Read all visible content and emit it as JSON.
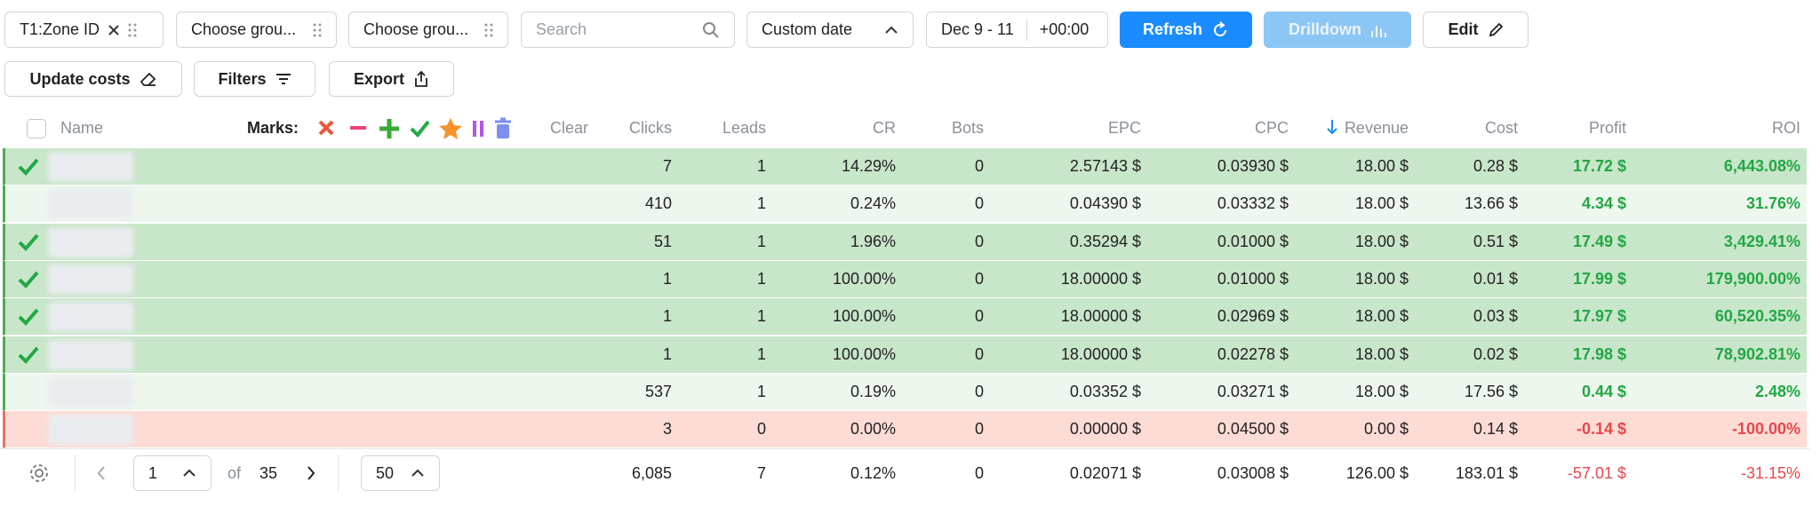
{
  "toolbar": {
    "group1": "T1:Zone ID",
    "group2": "Choose grou...",
    "group3": "Choose grou...",
    "search": "Search",
    "date_mode": "Custom date",
    "date_range": "Dec 9 - 11",
    "timezone": "+00:00",
    "refresh": "Refresh",
    "drilldown": "Drilldown",
    "edit": "Edit",
    "update_costs": "Update costs",
    "filters": "Filters",
    "export": "Export"
  },
  "table": {
    "headers": {
      "name": "Name",
      "marks": "Marks:",
      "clear": "Clear",
      "columns": [
        "Clicks",
        "Leads",
        "CR",
        "Bots",
        "EPC",
        "CPC",
        "Revenue",
        "Cost",
        "Profit",
        "ROI"
      ]
    },
    "rows": [
      {
        "marked": true,
        "loss": false,
        "cells": [
          "7",
          "1",
          "14.29%",
          "0",
          "2.57143 $",
          "0.03930 $",
          "18.00 $",
          "0.28 $",
          "17.72 $",
          "6,443.08%"
        ]
      },
      {
        "marked": false,
        "loss": false,
        "cells": [
          "410",
          "1",
          "0.24%",
          "0",
          "0.04390 $",
          "0.03332 $",
          "18.00 $",
          "13.66 $",
          "4.34 $",
          "31.76%"
        ]
      },
      {
        "marked": true,
        "loss": false,
        "cells": [
          "51",
          "1",
          "1.96%",
          "0",
          "0.35294 $",
          "0.01000 $",
          "18.00 $",
          "0.51 $",
          "17.49 $",
          "3,429.41%"
        ]
      },
      {
        "marked": true,
        "loss": false,
        "cells": [
          "1",
          "1",
          "100.00%",
          "0",
          "18.00000 $",
          "0.01000 $",
          "18.00 $",
          "0.01 $",
          "17.99 $",
          "179,900.00%"
        ]
      },
      {
        "marked": true,
        "loss": false,
        "cells": [
          "1",
          "1",
          "100.00%",
          "0",
          "18.00000 $",
          "0.02969 $",
          "18.00 $",
          "0.03 $",
          "17.97 $",
          "60,520.35%"
        ]
      },
      {
        "marked": true,
        "loss": false,
        "cells": [
          "1",
          "1",
          "100.00%",
          "0",
          "18.00000 $",
          "0.02278 $",
          "18.00 $",
          "0.02 $",
          "17.98 $",
          "78,902.81%"
        ]
      },
      {
        "marked": false,
        "loss": false,
        "cells": [
          "537",
          "1",
          "0.19%",
          "0",
          "0.03352 $",
          "0.03271 $",
          "18.00 $",
          "17.56 $",
          "0.44 $",
          "2.48%"
        ]
      },
      {
        "marked": false,
        "loss": true,
        "cells": [
          "3",
          "0",
          "0.00%",
          "0",
          "0.00000 $",
          "0.04500 $",
          "0.00 $",
          "0.14 $",
          "-0.14 $",
          "-100.00%"
        ]
      }
    ],
    "totals": [
      "6,085",
      "7",
      "0.12%",
      "0",
      "0.02071 $",
      "0.03008 $",
      "126.00 $",
      "183.01 $",
      "-57.01 $",
      "-31.15%"
    ]
  },
  "footer": {
    "page": "1",
    "of": "of",
    "pages": "35",
    "per_page": "50"
  }
}
